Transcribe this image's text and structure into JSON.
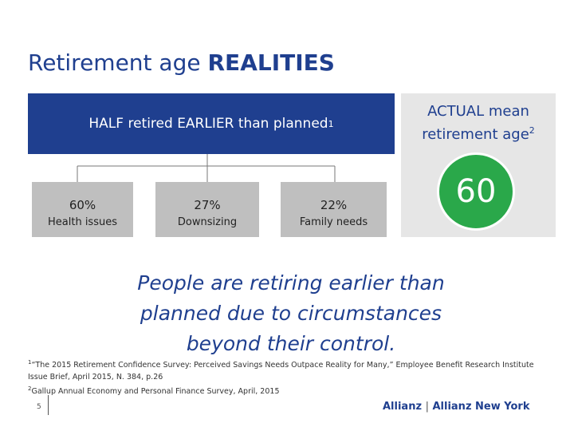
{
  "title": {
    "regular": "Retirement age ",
    "bold": "REALITIES"
  },
  "banner": {
    "text": "HALF retired EARLIER  than planned",
    "note": "1"
  },
  "reasons": [
    {
      "percent": "60%",
      "label": "Health issues"
    },
    {
      "percent": "27%",
      "label": "Downsizing"
    },
    {
      "percent": "22%",
      "label": "Family needs"
    }
  ],
  "actual": {
    "heading": "ACTUAL mean retirement age",
    "note": "2",
    "value": "60"
  },
  "quote": "People are retiring earlier than planned due to circumstances beyond their control.",
  "footnotes": [
    {
      "mark": "1",
      "text": "“The 2015 Retirement Confidence Survey: Perceived Savings Needs Outpace Reality for Many,” Employee Benefit Research Institute Issue Brief, April 2015, N. 384, p.26"
    },
    {
      "mark": "2",
      "text": "Gallup Annual Economy and Personal Finance Survey, April, 2015"
    }
  ],
  "page_number": "5",
  "logo": {
    "brand": "Allianz",
    "brand2": "Allianz",
    "region": "New York"
  }
}
